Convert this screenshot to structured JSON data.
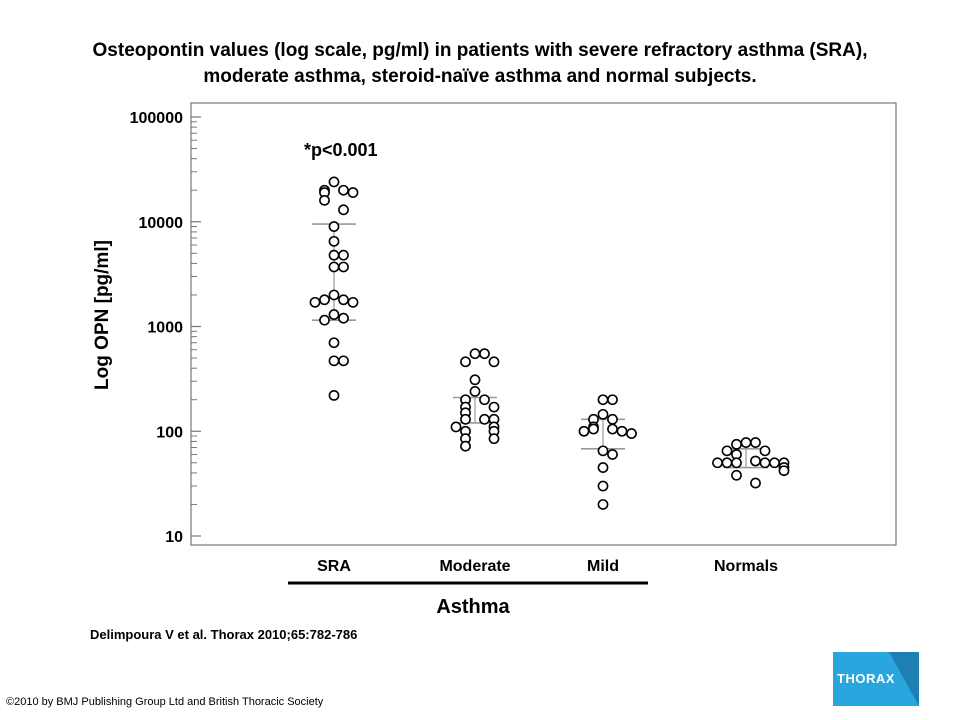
{
  "title": {
    "line1": "Osteopontin values (log scale, pg/ml) in patients with severe refractory asthma (SRA),",
    "line2": "moderate asthma, steroid-naïve asthma and normal subjects."
  },
  "citation": "Delimpoura V et al. Thorax 2010;65:782-786",
  "copyright": "©2010 by BMJ Publishing Group Ltd and British Thoracic Society",
  "logo_text": "THORAX",
  "colors": {
    "logo": "#2aa6de",
    "marker_line": "#999999"
  },
  "chart_data": {
    "type": "scatter",
    "ylabel": "Log OPN [pg/ml]",
    "group_label": "Asthma",
    "annotation": "*p<0.001",
    "y_scale": "log",
    "ylim": [
      10,
      100000
    ],
    "ytick_labels": [
      "10",
      "100",
      "1000",
      "10000",
      "100000"
    ],
    "categories": [
      "SRA",
      "Moderate",
      "Mild",
      "Normals"
    ],
    "series": [
      {
        "category": "SRA",
        "mean_line": 9500,
        "sd_line": 1150,
        "values": [
          24000,
          20000,
          20000,
          19000,
          19000,
          16000,
          13000,
          9000,
          6500,
          4800,
          4800,
          3700,
          3700,
          2000,
          1800,
          1800,
          1700,
          1700,
          1300,
          1200,
          1150,
          700,
          470,
          470,
          220
        ]
      },
      {
        "category": "Moderate",
        "mean_line": 210,
        "sd_line": 120,
        "values": [
          550,
          550,
          460,
          460,
          310,
          240,
          200,
          200,
          170,
          170,
          150,
          130,
          130,
          130,
          110,
          110,
          100,
          100,
          85,
          85,
          72
        ]
      },
      {
        "category": "Mild",
        "mean_line": 130,
        "sd_line": 68,
        "values": [
          200,
          200,
          145,
          130,
          130,
          110,
          105,
          105,
          100,
          100,
          95,
          65,
          60,
          45,
          30,
          20
        ]
      },
      {
        "category": "Normals",
        "mean_line": 68,
        "sd_line": 45,
        "values": [
          78,
          78,
          75,
          65,
          65,
          60,
          52,
          50,
          50,
          50,
          50,
          50,
          50,
          45,
          42,
          38,
          32
        ]
      }
    ]
  }
}
